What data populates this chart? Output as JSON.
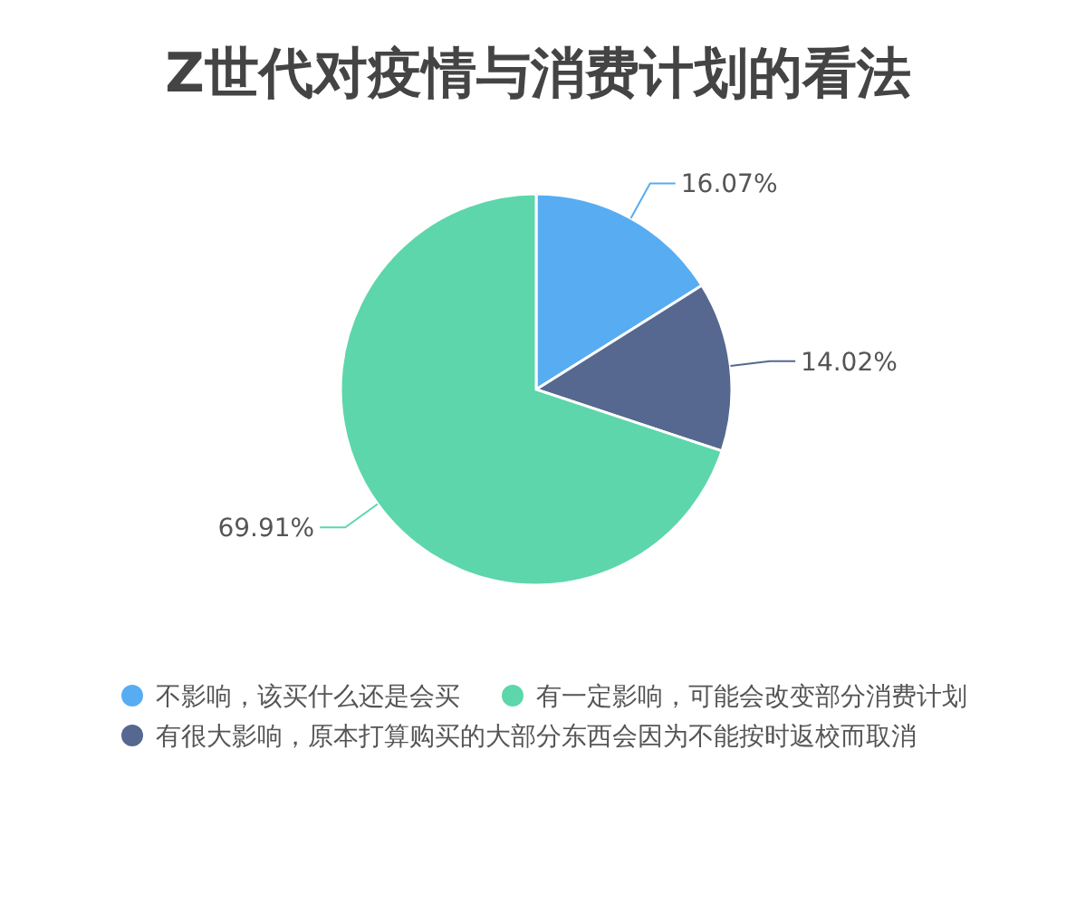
{
  "chart_data": {
    "type": "pie",
    "title": "Z世代对疫情与消费计划的看法",
    "categories": [
      "不影响，该买什么还是会买",
      "有很大影响，原本打算购买的大部分东西会因为不能按时返校而取消",
      "有一定影响，可能会改变部分消费计划"
    ],
    "values": [
      16.07,
      14.02,
      69.91
    ],
    "colors": [
      "#58acf2",
      "#56688f",
      "#5dd6ab"
    ],
    "value_labels": [
      "16.07%",
      "14.02%",
      "69.91%"
    ],
    "legend": "bottom"
  }
}
